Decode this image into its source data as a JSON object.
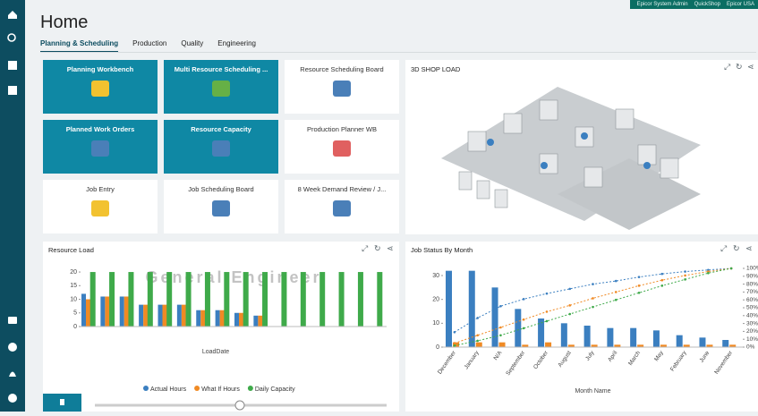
{
  "header": {
    "links": [
      "Epicor System Admin",
      "QuickShop",
      "Epicor USA"
    ],
    "title": "Home",
    "tabs": [
      "Planning & Scheduling",
      "Production",
      "Quality",
      "Engineering"
    ]
  },
  "tiles": [
    {
      "label": "Planning Workbench"
    },
    {
      "label": "Multi Resource Scheduling ..."
    },
    {
      "label": "Resource Scheduling Board"
    },
    {
      "label": "Planned Work Orders"
    },
    {
      "label": "Resource Capacity"
    },
    {
      "label": "Production Planner WB"
    },
    {
      "label": "Job Entry"
    },
    {
      "label": "Job Scheduling Board"
    },
    {
      "label": "8 Week Demand Review / J..."
    }
  ],
  "shop_load": {
    "title": "3D SHOP LOAD"
  },
  "charts": [
    {
      "type": "bar",
      "title": "Resource Load",
      "watermark": "General Engineer",
      "x_label": "LoadDate",
      "ylim": [
        0,
        21
      ],
      "yticks": [
        0,
        5,
        10,
        15,
        20
      ],
      "series": [
        {
          "name": "Actual Hours",
          "color": "#3b7fc0",
          "values": [
            12,
            11,
            11,
            8,
            8,
            8,
            6,
            6,
            5,
            4,
            0,
            0,
            0,
            0,
            0,
            0
          ]
        },
        {
          "name": "What If Hours",
          "color": "#f08a24",
          "values": [
            10,
            11,
            11,
            8,
            8,
            8,
            6,
            6,
            5,
            4,
            0,
            0,
            0,
            0,
            0,
            0
          ]
        },
        {
          "name": "Daily Capacity",
          "color": "#3faa4a",
          "values": [
            20,
            20,
            20,
            20,
            20,
            20,
            20,
            20,
            20,
            20,
            20,
            20,
            20,
            20,
            20,
            20
          ]
        }
      ]
    },
    {
      "type": "bar-line",
      "title": "Job Status By Month",
      "x_label": "Month Name",
      "categories": [
        "December",
        "January",
        "N/A",
        "September",
        "October",
        "August",
        "July",
        "April",
        "March",
        "May",
        "February",
        "June",
        "November"
      ],
      "ylim": [
        0,
        33
      ],
      "yticks": [
        0,
        10,
        20,
        30
      ],
      "y2lim": [
        0,
        100
      ],
      "y2ticks": [
        {
          "value": 0,
          "label": "0%"
        },
        {
          "value": 10,
          "label": "10%"
        },
        {
          "value": 20,
          "label": "20%"
        },
        {
          "value": 30,
          "label": "30%"
        },
        {
          "value": 40,
          "label": "40%"
        },
        {
          "value": 50,
          "label": "50%"
        },
        {
          "value": 60,
          "label": "60%"
        },
        {
          "value": 70,
          "label": "70%"
        },
        {
          "value": 80,
          "label": "80%"
        },
        {
          "value": 90,
          "label": "90%"
        },
        {
          "value": 100,
          "label": "100%"
        }
      ],
      "series": [
        {
          "color": "#3b7fc0",
          "values": [
            32,
            32,
            25,
            16,
            12,
            10,
            9,
            8,
            8,
            7,
            5,
            4,
            3
          ]
        },
        {
          "color": "#f08a24",
          "values": [
            2,
            2,
            2,
            1,
            2,
            1,
            1,
            1,
            1,
            1,
            1,
            1,
            1
          ]
        },
        {
          "color": "#3b7fc0",
          "axis": "y2",
          "values": [
            19,
            37,
            52,
            61,
            68,
            74,
            80,
            84,
            89,
            93,
            96,
            98,
            100
          ]
        },
        {
          "color": "#f08a24",
          "axis": "y2",
          "values": [
            5,
            15,
            25,
            35,
            45,
            53,
            62,
            70,
            78,
            85,
            91,
            96,
            100
          ]
        },
        {
          "color": "#3faa4a",
          "axis": "y2",
          "values": [
            2,
            8,
            15,
            24,
            33,
            42,
            51,
            60,
            69,
            78,
            86,
            94,
            100
          ]
        }
      ]
    }
  ]
}
